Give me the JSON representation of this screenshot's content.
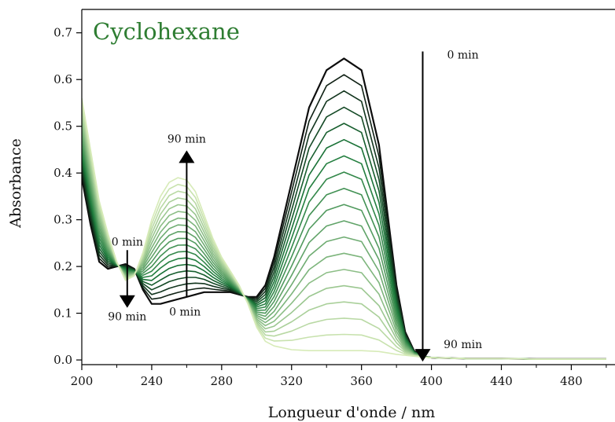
{
  "chart_data": {
    "type": "line",
    "title": "Cyclohexane",
    "title_color": "#2e7d32",
    "xlabel": "Longueur d'onde / nm",
    "ylabel": "Absorbance",
    "xlim": [
      200,
      505
    ],
    "ylim": [
      -0.01,
      0.75
    ],
    "xticks": [
      200,
      240,
      280,
      320,
      360,
      400,
      440,
      480
    ],
    "yticks": [
      0.0,
      0.1,
      0.2,
      0.3,
      0.4,
      0.5,
      0.6,
      0.7
    ],
    "ytick_labels": [
      "0.0",
      "0.1",
      "0.2",
      "0.3",
      "0.4",
      "0.5",
      "0.6",
      "0.7"
    ],
    "grid": false,
    "series_count": 19,
    "color_start": "#0d0d0d",
    "color_mid": "#1b7a3a",
    "color_end": "#d7ebb8",
    "x": [
      200,
      205,
      210,
      215,
      220,
      225,
      230,
      235,
      240,
      245,
      250,
      255,
      260,
      265,
      270,
      275,
      280,
      285,
      290,
      295,
      300,
      305,
      310,
      320,
      330,
      340,
      350,
      360,
      370,
      375,
      380,
      385,
      390,
      395,
      400,
      420,
      440,
      460,
      480,
      500
    ],
    "first_spectrum_0min": [
      0.39,
      0.29,
      0.21,
      0.195,
      0.2,
      0.205,
      0.195,
      0.15,
      0.12,
      0.12,
      0.125,
      0.13,
      0.135,
      0.14,
      0.145,
      0.145,
      0.145,
      0.145,
      0.14,
      0.135,
      0.135,
      0.16,
      0.22,
      0.38,
      0.54,
      0.62,
      0.645,
      0.62,
      0.46,
      0.31,
      0.16,
      0.06,
      0.02,
      0.008,
      0.005,
      0.003,
      0.003,
      0.002,
      0.002,
      0.002
    ],
    "last_spectrum_90min": [
      0.56,
      0.45,
      0.34,
      0.27,
      0.21,
      0.17,
      0.18,
      0.23,
      0.3,
      0.35,
      0.38,
      0.39,
      0.385,
      0.36,
      0.31,
      0.26,
      0.22,
      0.19,
      0.16,
      0.12,
      0.07,
      0.04,
      0.03,
      0.022,
      0.02,
      0.02,
      0.02,
      0.02,
      0.018,
      0.015,
      0.012,
      0.01,
      0.008,
      0.006,
      0.005,
      0.003,
      0.003,
      0.002,
      0.002,
      0.002
    ],
    "annotations": [
      {
        "text": "0 min",
        "x": 226,
        "y": 0.245
      },
      {
        "text": "90 min",
        "x": 226,
        "y": 0.085
      },
      {
        "text": "90 min",
        "x": 260,
        "y": 0.465
      },
      {
        "text": "0 min",
        "x": 259,
        "y": 0.095
      },
      {
        "text": "0 min",
        "x": 418,
        "y": 0.645
      },
      {
        "text": "90 min",
        "x": 418,
        "y": 0.025
      }
    ],
    "arrows": [
      {
        "x": 226,
        "from": 0.235,
        "to": 0.125
      },
      {
        "x": 260,
        "from": 0.135,
        "to": 0.435
      },
      {
        "x": 395,
        "from": 0.66,
        "to": 0.01
      }
    ]
  }
}
